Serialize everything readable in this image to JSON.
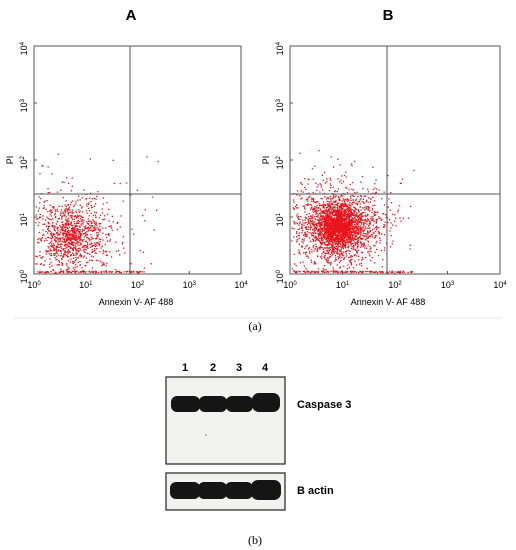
{
  "panel_a": {
    "caption": "(a)",
    "plot_a_label": "A",
    "plot_b_label": "B"
  },
  "panel_b": {
    "caption": "(b)",
    "lanes": [
      "1",
      "2",
      "3",
      "4"
    ],
    "blot_top_label": "Caspase 3",
    "blot_bottom_label": "B actin"
  },
  "colors": {
    "dots": "#e8141c",
    "axis": "#555555",
    "band": "#111111"
  },
  "chart_data": [
    {
      "type": "scatter",
      "title": "A",
      "xlabel": "Annexin V- AF 488",
      "ylabel": "PI",
      "xscale": "log",
      "yscale": "log",
      "xlim": [
        1,
        10000
      ],
      "ylim": [
        1,
        10000
      ],
      "x_ticks": [
        "10^0",
        "10^1",
        "10^2",
        "10^3",
        "10^4"
      ],
      "y_ticks": [
        "10^0",
        "10^1",
        "10^2",
        "10^3",
        "10^4"
      ],
      "quadrant_gates": {
        "x": 70,
        "y": 25
      },
      "density": "moderate population in lower-left quadrant",
      "grid": false
    },
    {
      "type": "scatter",
      "title": "B",
      "xlabel": "Annexin V- AF 488",
      "ylabel": "PI",
      "xscale": "log",
      "yscale": "log",
      "xlim": [
        1,
        10000
      ],
      "ylim": [
        1,
        10000
      ],
      "x_ticks": [
        "10^0",
        "10^1",
        "10^2",
        "10^3",
        "10^4"
      ],
      "y_ticks": [
        "10^0",
        "10^1",
        "10^2",
        "10^3",
        "10^4"
      ],
      "quadrant_gates": {
        "x": 70,
        "y": 25
      },
      "density": "dense population in lower-left quadrant",
      "grid": false
    }
  ]
}
